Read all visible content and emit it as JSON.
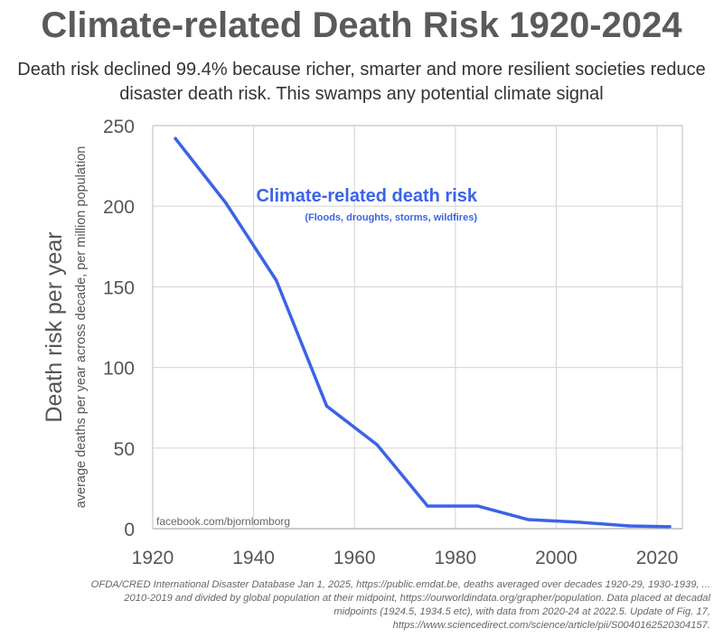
{
  "chart_data": {
    "type": "line",
    "title": "Climate-related Death Risk 1920-2024",
    "subtitle": "Death risk declined 99.4% because richer, smarter and more resilient societies reduce disaster death risk. This swamps any potential climate signal",
    "ylabel": "Death risk per year",
    "ylabel_sub": "average deaths per year across decade, per million population",
    "xlabel": "",
    "xlim": [
      1920,
      2025
    ],
    "ylim": [
      0,
      250
    ],
    "xticks": [
      1920,
      1940,
      1960,
      1980,
      2000,
      2020
    ],
    "yticks": [
      0,
      50,
      100,
      150,
      200,
      250
    ],
    "grid": true,
    "series": [
      {
        "name": "Climate-related death risk",
        "note": "(Floods, droughts, storms, wildfires)",
        "color": "#3b63e6",
        "x": [
          1924.5,
          1934.5,
          1944.5,
          1954.5,
          1964.5,
          1974.5,
          1984.5,
          1994.5,
          2004.5,
          2014.5,
          2022.5
        ],
        "y": [
          242,
          202,
          154,
          76,
          52,
          14,
          14,
          5.6,
          4,
          1.7,
          1.2
        ]
      }
    ],
    "watermark": "facebook.com/bjornlomborg",
    "footnote": [
      "OFDA/CRED International Disaster Database Jan 1, 2025, https://public.emdat.be, deaths averaged over decades 1920-29, 1930-1939, ...",
      "2010-2019 and divided by global population at their midpoint, https://ourworldindata.org/grapher/population. Data placed at decadal",
      "midpoints (1924.5, 1934.5 etc), with data from 2020-24 at 2022.5. Update of Fig. 17,",
      "https://www.sciencedirect.com/science/article/pii/S0040162520304157."
    ]
  }
}
